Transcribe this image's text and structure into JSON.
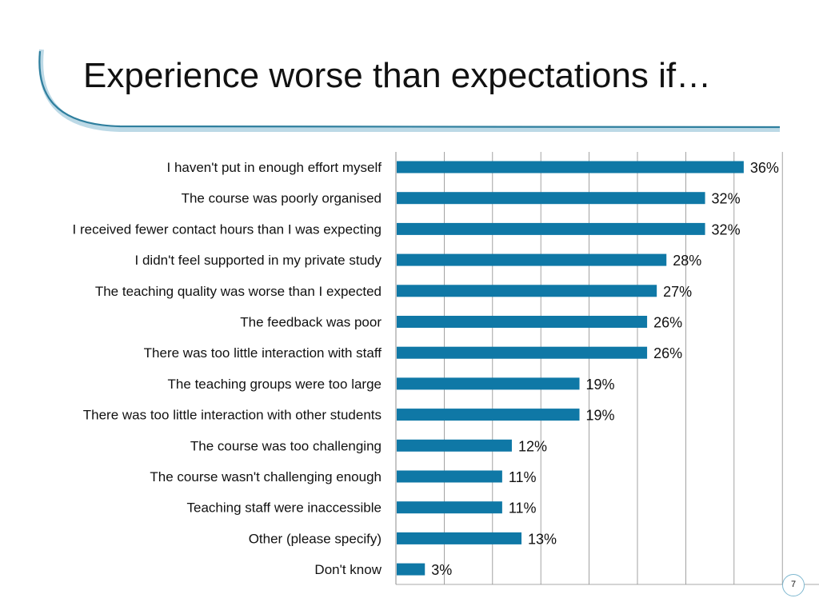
{
  "slide": {
    "title": "Experience worse than expectations if…",
    "page_number": "7"
  },
  "colors": {
    "bar": "#0f78a6",
    "gridline": "#8c8c8c",
    "swoosh_dark": "#2f7f9e",
    "swoosh_light": "#bcd9e6"
  },
  "chart_data": {
    "type": "bar",
    "orientation": "horizontal",
    "title": "",
    "xlabel": "",
    "ylabel": "",
    "xlim": [
      0,
      45
    ],
    "grid": true,
    "legend": "none",
    "categories": [
      "I haven't put in enough effort myself",
      "The course was poorly organised",
      "I received fewer contact hours than I was expecting",
      "I didn't feel supported in my private study",
      "The teaching quality was worse than I expected",
      "The feedback was poor",
      "There was too little interaction with staff",
      "The teaching groups were too large",
      "There was too little interaction with other students",
      "The course was too challenging",
      "The course wasn't challenging enough",
      "Teaching staff were inaccessible",
      "Other (please specify)",
      "Don't know"
    ],
    "values": [
      36,
      32,
      32,
      28,
      27,
      26,
      26,
      19,
      19,
      12,
      11,
      11,
      13,
      3
    ],
    "value_labels": [
      "36%",
      "32%",
      "32%",
      "28%",
      "27%",
      "26%",
      "26%",
      "19%",
      "19%",
      "12%",
      "11%",
      "11%",
      "13%",
      "3%"
    ]
  }
}
